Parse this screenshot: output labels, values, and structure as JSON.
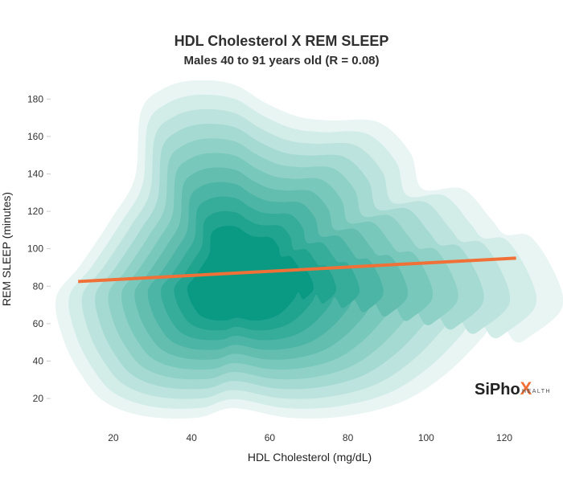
{
  "chart_data": {
    "type": "density contour",
    "title": "HDL Cholesterol X REM SLEEP",
    "subtitle": "Males 40 to 91 years old (R = 0.08)",
    "xlabel": "HDL Cholesterol (mg/dL)",
    "ylabel": "REM SLEEP (minutes)",
    "xlim": [
      5,
      135
    ],
    "ylim": [
      8,
      190
    ],
    "x_ticks": [
      20,
      40,
      60,
      80,
      100,
      120
    ],
    "y_ticks": [
      20,
      40,
      60,
      80,
      100,
      120,
      140,
      160,
      180
    ],
    "grid": false,
    "density_peak": {
      "x": 52,
      "y": 82
    },
    "density_levels": 11,
    "trendline": {
      "x": [
        11,
        123
      ],
      "y": [
        82.5,
        95
      ]
    },
    "colors": {
      "density_low": "#e8f5f3",
      "density_high": "#0a9a84",
      "trendline": "#f07038"
    }
  },
  "logo": {
    "brand_prefix": "SiPho",
    "brand_x": "X",
    "brand_suffix": "HEALTH",
    "x_colors": [
      "#f07038",
      "#1fb39a"
    ]
  }
}
